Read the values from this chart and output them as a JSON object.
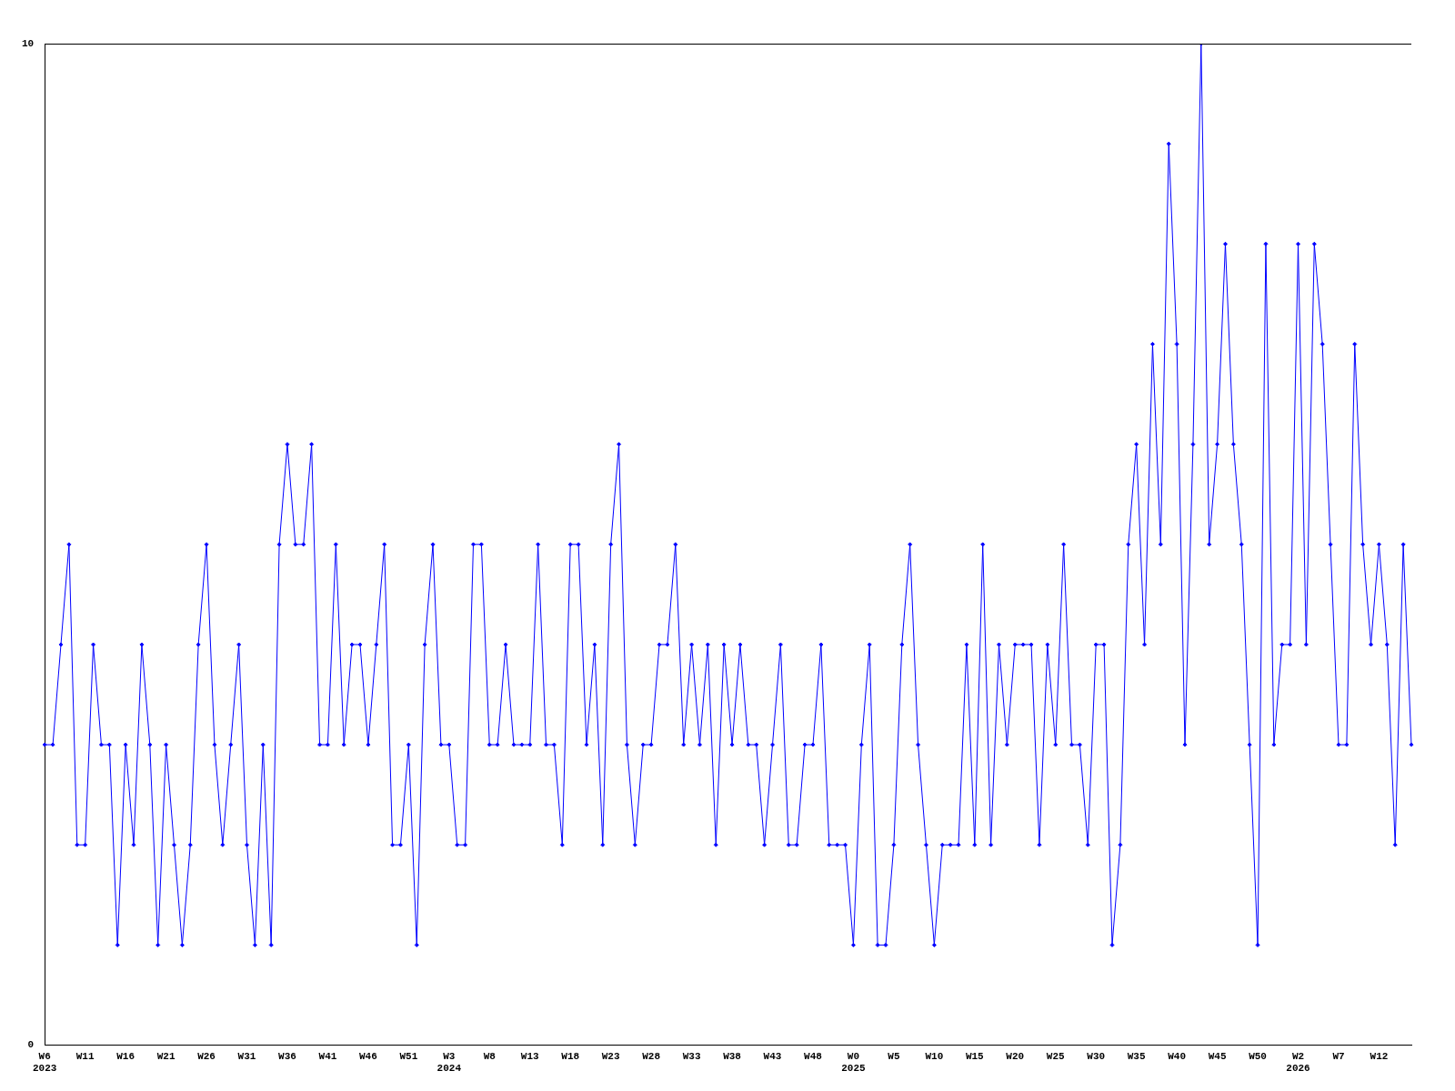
{
  "chart_data": {
    "type": "line",
    "categories": [
      "W6\n2023",
      null,
      null,
      null,
      null,
      "W11",
      null,
      null,
      null,
      null,
      "W16",
      null,
      null,
      null,
      null,
      "W21",
      null,
      null,
      null,
      null,
      "W26",
      null,
      null,
      null,
      null,
      "W31",
      null,
      null,
      null,
      null,
      "W36",
      null,
      null,
      null,
      null,
      "W41",
      null,
      null,
      null,
      null,
      "W46",
      null,
      null,
      null,
      null,
      "W51",
      null,
      null,
      null,
      null,
      "W3\n2024",
      null,
      null,
      null,
      null,
      "W8",
      null,
      null,
      null,
      null,
      "W13",
      null,
      null,
      null,
      null,
      "W18",
      null,
      null,
      null,
      null,
      "W23",
      null,
      null,
      null,
      null,
      "W28",
      null,
      null,
      null,
      null,
      "W33",
      null,
      null,
      null,
      null,
      "W38",
      null,
      null,
      null,
      null,
      "W43",
      null,
      null,
      null,
      null,
      "W48",
      null,
      null,
      null,
      null,
      "W0\n2025",
      null,
      null,
      null,
      null,
      "W5",
      null,
      null,
      null,
      null,
      "W10",
      null,
      null,
      null,
      null,
      "W15",
      null,
      null,
      null,
      null,
      "W20",
      null,
      null,
      null,
      null,
      "W25",
      null,
      null,
      null,
      null,
      "W30",
      null,
      null,
      null,
      null,
      "W35",
      null,
      null,
      null,
      null,
      "W40",
      null,
      null,
      null,
      null,
      "W45",
      null,
      null,
      null,
      null,
      "W50",
      null,
      null,
      null,
      null,
      "W2\n2026",
      null,
      null,
      null,
      null,
      "W7",
      null,
      null,
      null,
      null,
      "W12",
      null,
      null,
      null,
      null
    ],
    "values": [
      3,
      3,
      4,
      5,
      2,
      2,
      4,
      3,
      3,
      1,
      3,
      2,
      4,
      3,
      1,
      3,
      2,
      1,
      2,
      4,
      5,
      3,
      2,
      3,
      4,
      2,
      1,
      3,
      1,
      5,
      6,
      5,
      5,
      6,
      3,
      3,
      5,
      3,
      4,
      4,
      3,
      4,
      5,
      2,
      2,
      3,
      1,
      4,
      5,
      3,
      3,
      2,
      2,
      5,
      5,
      3,
      3,
      4,
      3,
      3,
      3,
      5,
      3,
      3,
      2,
      5,
      5,
      3,
      4,
      2,
      5,
      6,
      3,
      2,
      3,
      3,
      4,
      4,
      5,
      3,
      4,
      3,
      4,
      2,
      4,
      3,
      4,
      3,
      3,
      2,
      3,
      4,
      2,
      2,
      3,
      3,
      4,
      2,
      2,
      2,
      1,
      3,
      4,
      1,
      1,
      2,
      4,
      5,
      3,
      2,
      1,
      2,
      2,
      2,
      4,
      2,
      5,
      2,
      4,
      3,
      4,
      4,
      4,
      2,
      4,
      3,
      5,
      3,
      3,
      2,
      4,
      4,
      1,
      2,
      5,
      6,
      4,
      7,
      5,
      9,
      7,
      3,
      6,
      10,
      5,
      6,
      8,
      6,
      5,
      3,
      1,
      8,
      3,
      4,
      4,
      8,
      4,
      8,
      7,
      5,
      3,
      3,
      7,
      5,
      4,
      5,
      4,
      2,
      5,
      3
    ],
    "color": "#0000ff",
    "ylim": [
      0,
      10
    ],
    "yticks": [
      0,
      10
    ],
    "marker": "diamond",
    "grid": false,
    "legend": false
  }
}
